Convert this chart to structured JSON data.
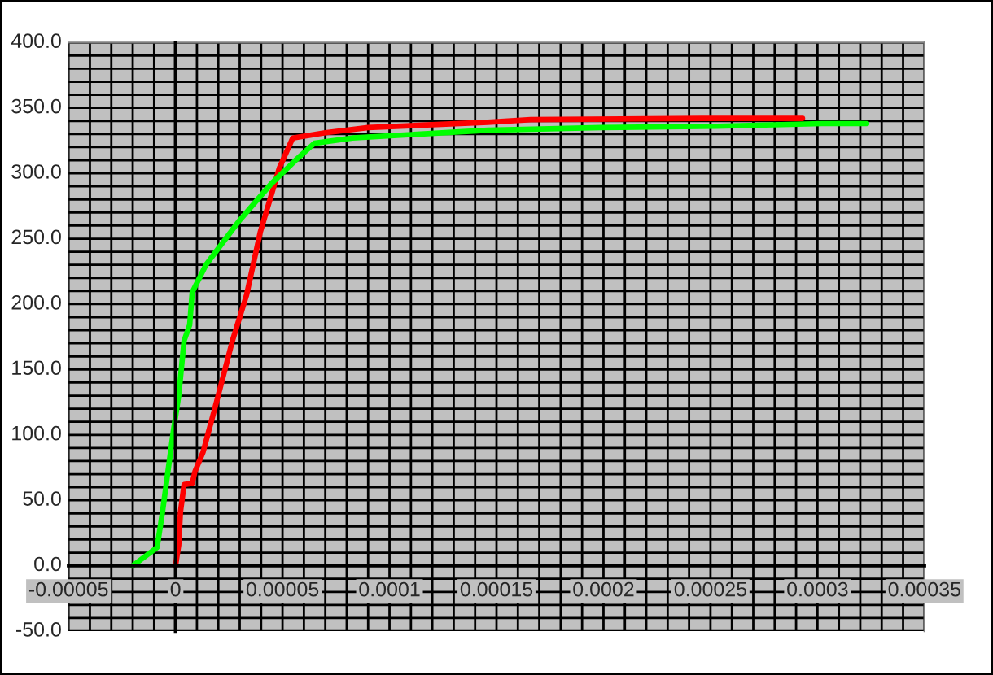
{
  "chart_data": {
    "type": "line",
    "xlim": [
      -5e-05,
      0.00035
    ],
    "xticks": [
      {
        "value": -5e-05,
        "label": "-0.00005"
      },
      {
        "value": 0,
        "label": "0"
      },
      {
        "value": 5e-05,
        "label": "0.00005"
      },
      {
        "value": 0.0001,
        "label": "0.0001"
      },
      {
        "value": 0.00015,
        "label": "0.00015"
      },
      {
        "value": 0.0002,
        "label": "0.0002"
      },
      {
        "value": 0.00025,
        "label": "0.00025"
      },
      {
        "value": 0.0003,
        "label": "0.0003"
      },
      {
        "value": 0.00035,
        "label": "0.00035"
      }
    ],
    "ylim": [
      -50,
      400
    ],
    "yticks": [
      {
        "value": -50,
        "label": "-50.0"
      },
      {
        "value": 0,
        "label": "0.0"
      },
      {
        "value": 50,
        "label": "50.0"
      },
      {
        "value": 100,
        "label": "100.0"
      },
      {
        "value": 150,
        "label": "150.0"
      },
      {
        "value": 200,
        "label": "200.0"
      },
      {
        "value": 250,
        "label": "250.0"
      },
      {
        "value": 300,
        "label": "300.0"
      },
      {
        "value": 350,
        "label": "350.0"
      },
      {
        "value": 400,
        "label": "400.0"
      }
    ],
    "grid": true,
    "legend": false,
    "marker": "none",
    "line_style": "solid",
    "series": [
      {
        "color": "#ff0000",
        "x": [
          0,
          1.5e-06,
          2.3e-06,
          4e-06,
          7.8e-06,
          9.1e-06,
          1.29e-05,
          1.93e-05,
          2.66e-05,
          3.32e-05,
          3.96e-05,
          4.85e-05,
          5.48e-05,
          7e-05,
          9e-05,
          0.000146,
          0.000166,
          0.000246,
          0.000293
        ],
        "values": [
          0,
          16,
          41,
          62,
          63,
          72,
          87,
          126,
          172,
          207,
          255,
          304,
          327,
          331,
          335,
          339,
          341,
          342,
          342
        ]
      },
      {
        "color": "#00ff00",
        "x": [
          -2e-05,
          -8.6e-06,
          -6.1e-06,
          -1e-06,
          1.5e-06,
          4e-06,
          6.6e-06,
          7.8e-06,
          1.42e-05,
          2.94e-05,
          4.47e-05,
          5.61e-05,
          6.49e-05,
          8.27e-05,
          0.000146,
          0.000199,
          0.000253,
          0.000302,
          0.000323
        ],
        "values": [
          0,
          14,
          41,
          103,
          130,
          172,
          184,
          209,
          230,
          263,
          292,
          310,
          323,
          327,
          333,
          335,
          336,
          338,
          338
        ]
      }
    ]
  }
}
